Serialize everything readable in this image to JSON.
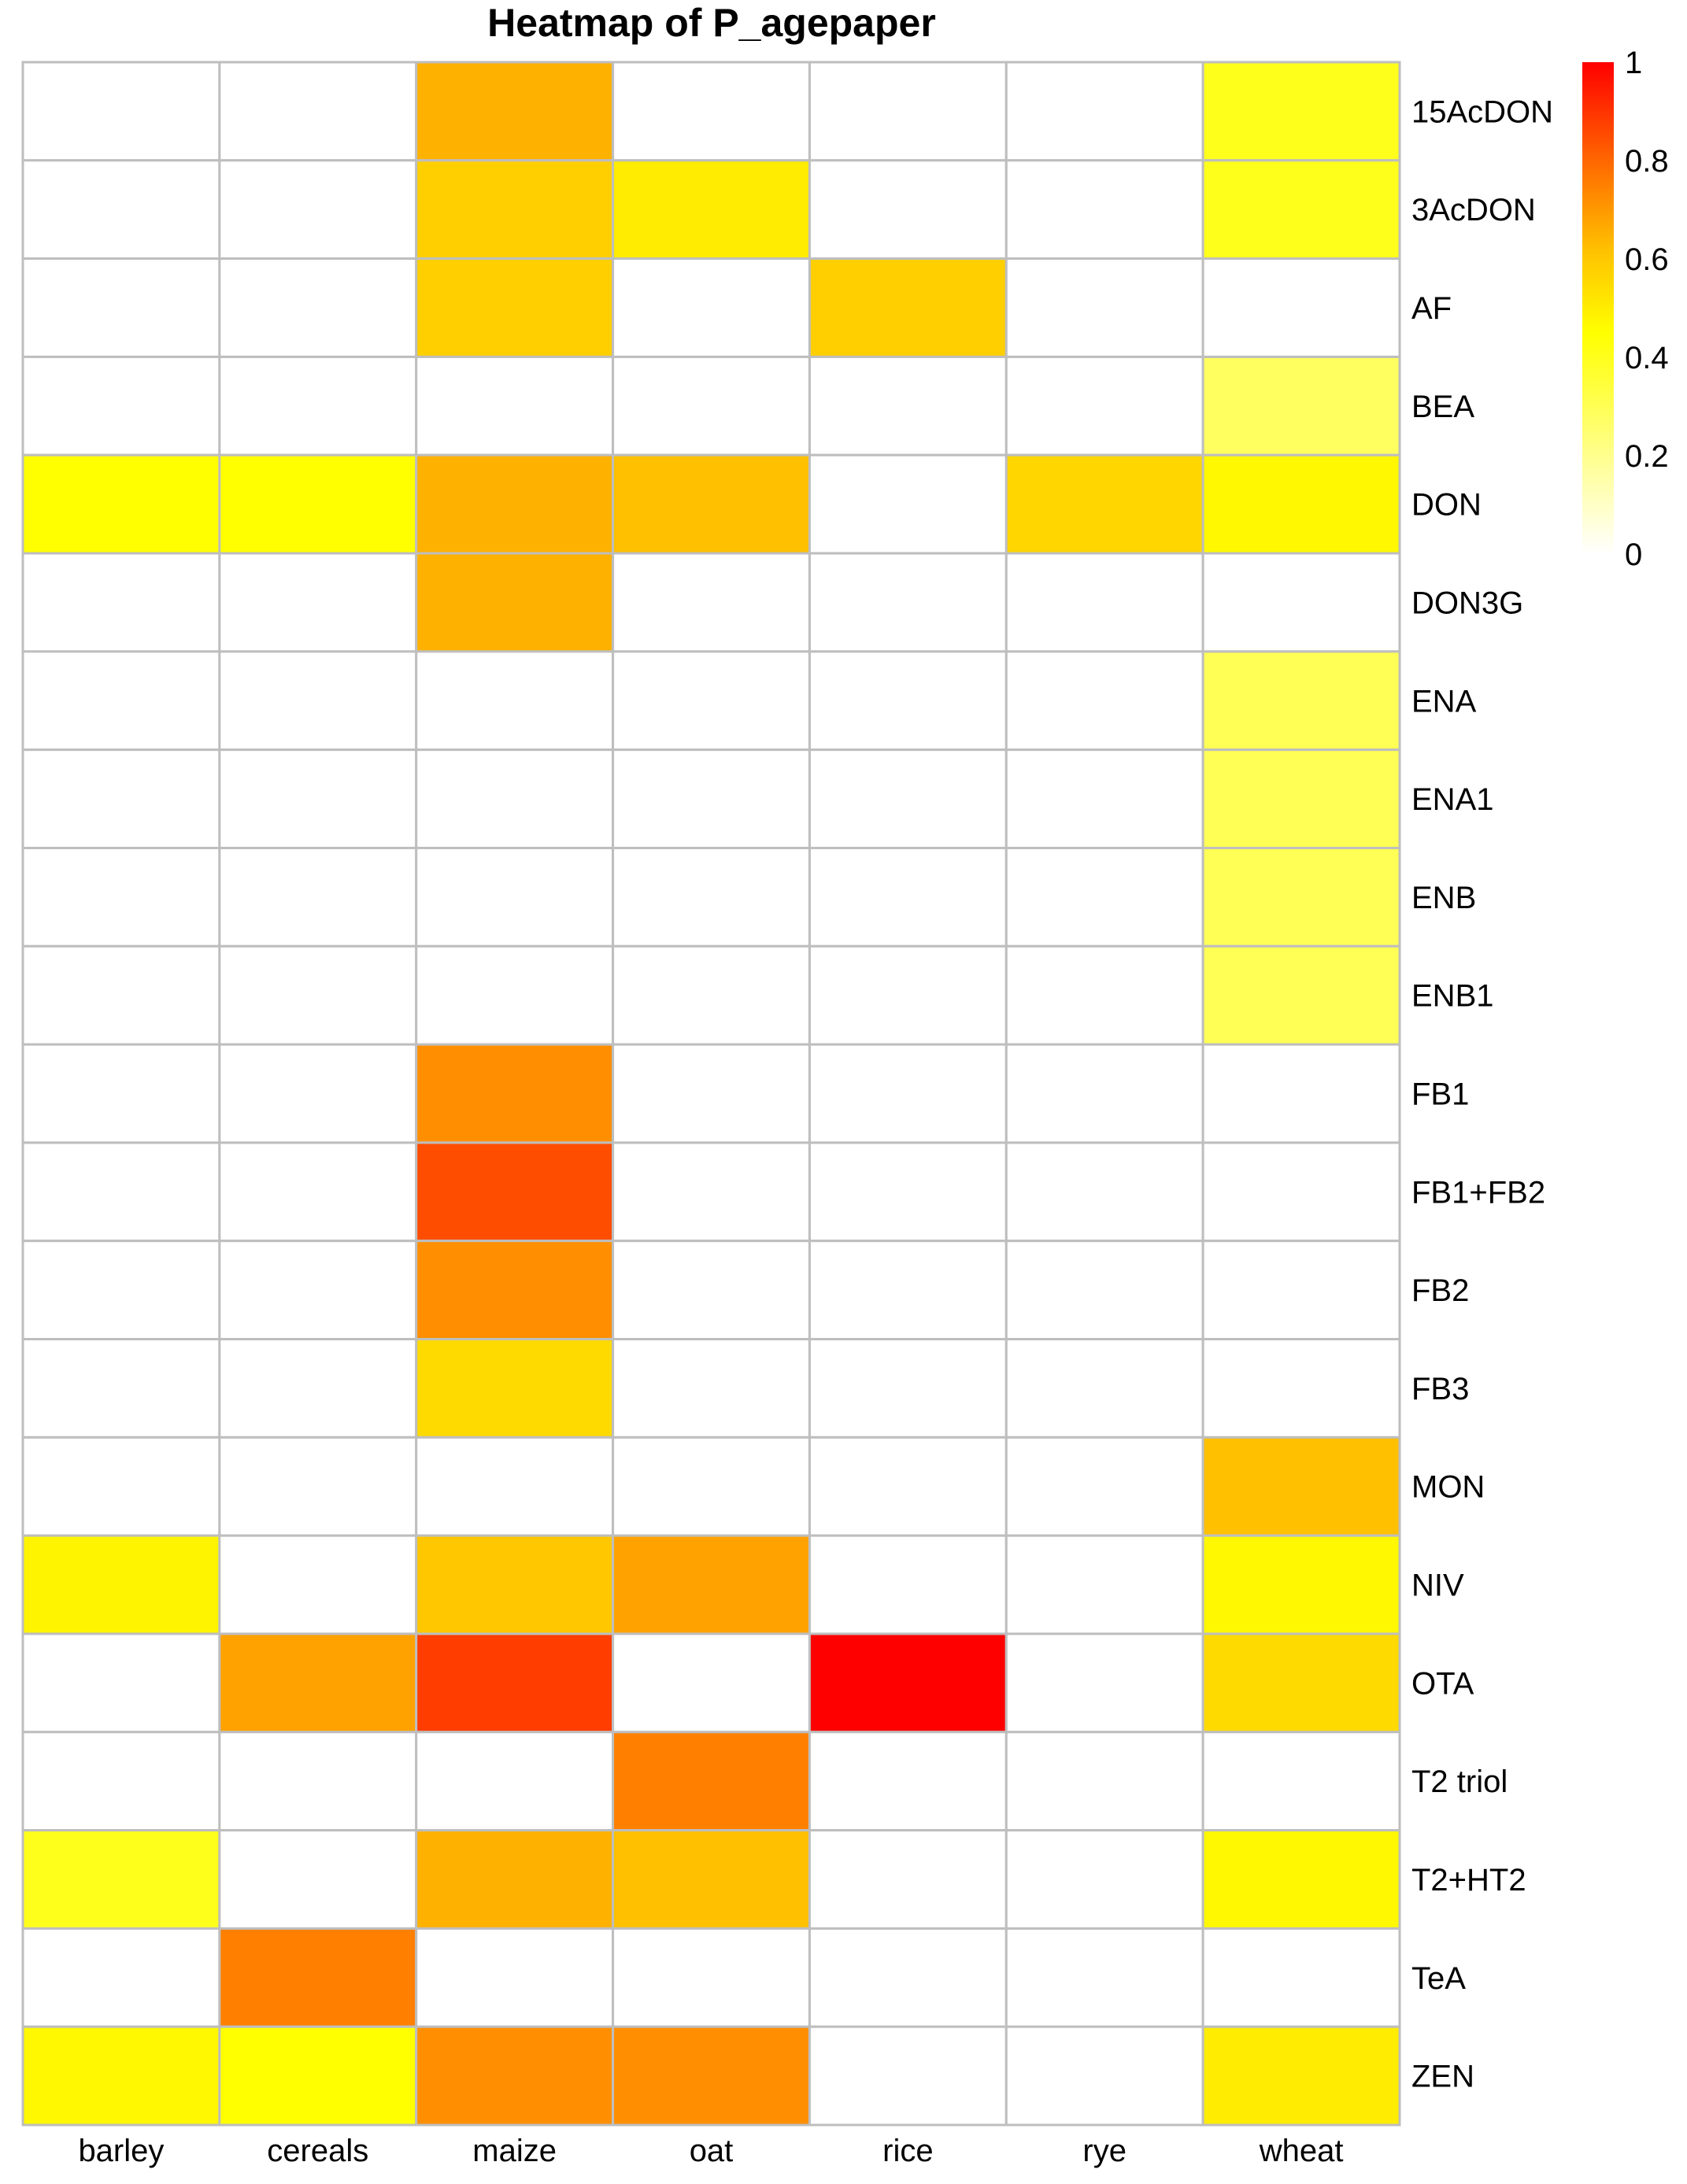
{
  "chart_data": {
    "type": "heatmap",
    "title": "Heatmap  of  P_agepaper",
    "xlabel": "",
    "ylabel": "",
    "columns": [
      "barley",
      "cereals",
      "maize",
      "oat",
      "rice",
      "rye",
      "wheat"
    ],
    "rows": [
      "15AcDON",
      "3AcDON",
      "AF",
      "BEA",
      "DON",
      "DON3G",
      "ENA",
      "ENA1",
      "ENB",
      "ENB1",
      "FB1",
      "FB1+FB2",
      "FB2",
      "FB3",
      "MON",
      "NIV",
      "OTA",
      "T2 triol",
      "T2+HT2",
      "TeA",
      "ZEN"
    ],
    "values": [
      [
        null,
        null,
        0.65,
        null,
        null,
        null,
        0.4
      ],
      [
        null,
        null,
        0.58,
        0.5,
        null,
        null,
        0.4
      ],
      [
        null,
        null,
        0.58,
        null,
        0.58,
        null,
        null
      ],
      [
        null,
        null,
        null,
        null,
        null,
        null,
        0.28
      ],
      [
        0.45,
        0.45,
        0.65,
        0.62,
        null,
        0.56,
        0.47
      ],
      [
        null,
        null,
        0.65,
        null,
        null,
        null,
        null
      ],
      [
        null,
        null,
        null,
        null,
        null,
        null,
        0.3
      ],
      [
        null,
        null,
        null,
        null,
        null,
        null,
        0.3
      ],
      [
        null,
        null,
        null,
        null,
        null,
        null,
        0.3
      ],
      [
        null,
        null,
        null,
        null,
        null,
        null,
        0.3
      ],
      [
        null,
        null,
        0.72,
        null,
        null,
        null,
        null
      ],
      [
        null,
        null,
        0.85,
        null,
        null,
        null,
        null
      ],
      [
        null,
        null,
        0.72,
        null,
        null,
        null,
        null
      ],
      [
        null,
        null,
        0.55,
        null,
        null,
        null,
        null
      ],
      [
        null,
        null,
        null,
        null,
        null,
        null,
        0.62
      ],
      [
        0.48,
        null,
        0.6,
        0.68,
        null,
        null,
        0.47
      ],
      [
        null,
        0.68,
        0.88,
        null,
        1.0,
        null,
        0.55
      ],
      [
        null,
        null,
        null,
        0.75,
        null,
        null,
        null
      ],
      [
        0.4,
        null,
        0.65,
        0.62,
        null,
        null,
        0.47
      ],
      [
        null,
        0.75,
        null,
        null,
        null,
        null,
        null
      ],
      [
        0.47,
        0.45,
        0.72,
        0.72,
        null,
        null,
        0.5
      ]
    ],
    "color_scale": {
      "stops": [
        {
          "value": 0.0,
          "color": "#ffffff"
        },
        {
          "value": 0.45,
          "color": "#ffff00"
        },
        {
          "value": 0.62,
          "color": "#ffc000"
        },
        {
          "value": 0.75,
          "color": "#ff8000"
        },
        {
          "value": 1.0,
          "color": "#ff0000"
        }
      ],
      "ticks": [
        "0",
        "0.2",
        "0.4",
        "0.6",
        "0.8",
        "1"
      ],
      "range": [
        0,
        1
      ]
    },
    "grid_color": "#bebebe",
    "legend_placement": "top-right"
  }
}
